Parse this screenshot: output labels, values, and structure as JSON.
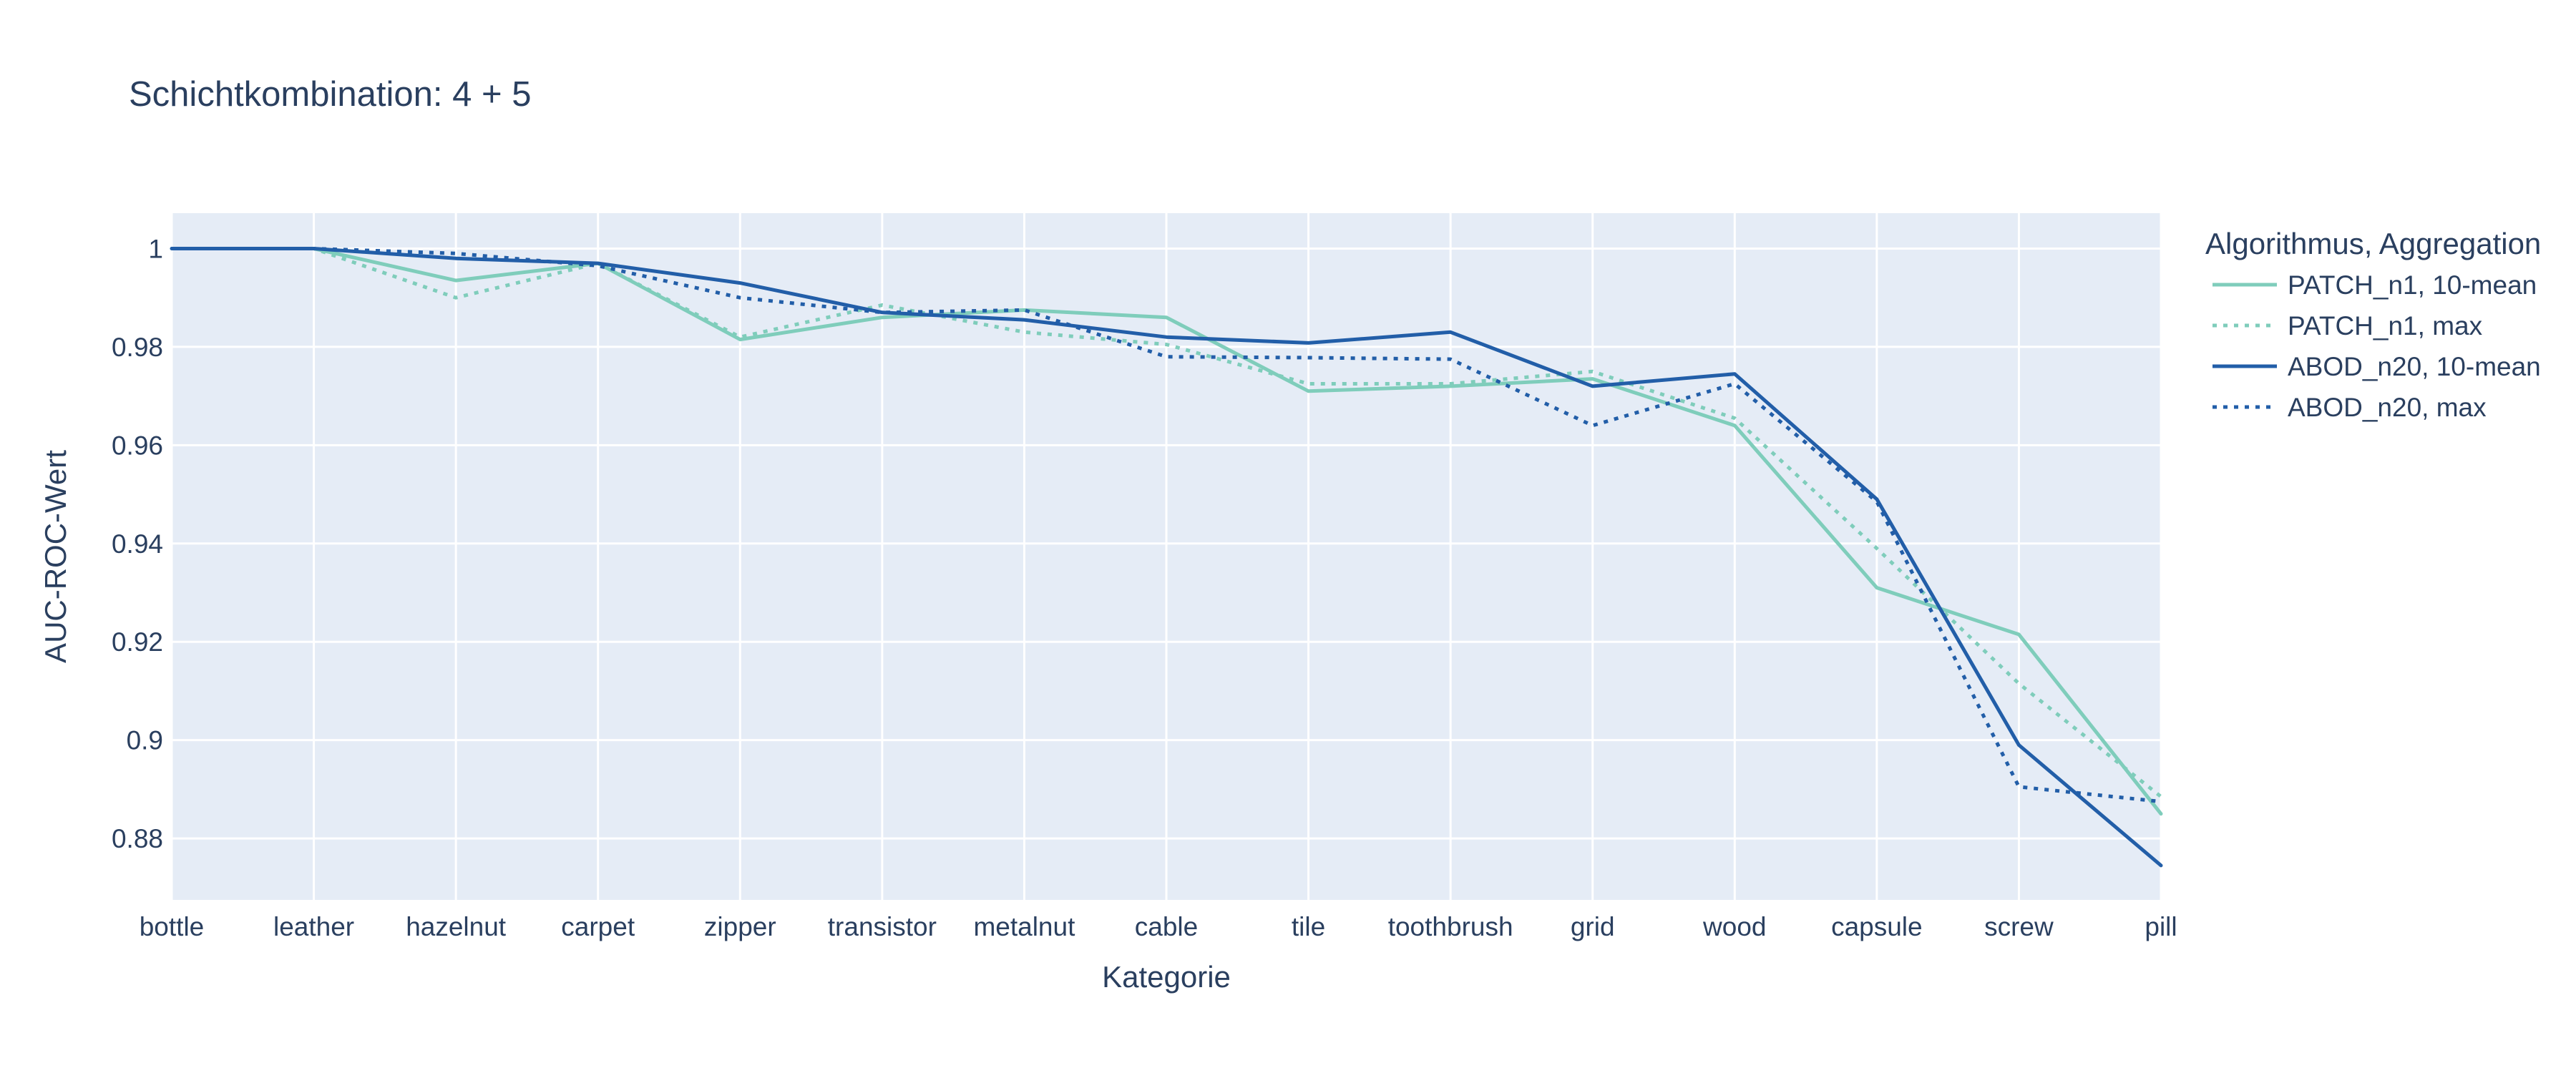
{
  "chart_data": {
    "type": "line",
    "title": "Schichtkombination: 4 + 5",
    "xlabel": "Kategorie",
    "ylabel": "AUC-ROC-Wert",
    "categories": [
      "bottle",
      "leather",
      "hazelnut",
      "carpet",
      "zipper",
      "transistor",
      "metalnut",
      "cable",
      "tile",
      "toothbrush",
      "grid",
      "wood",
      "capsule",
      "screw",
      "pill"
    ],
    "ylim": [
      0.8675,
      1.0072
    ],
    "yticks": [
      0.88,
      0.9,
      0.92,
      0.94,
      0.96,
      0.98,
      1
    ],
    "ytick_labels": [
      "0.88",
      "0.9",
      "0.92",
      "0.94",
      "0.96",
      "0.98",
      "1"
    ],
    "grid": true,
    "legend": {
      "title": "Algorithmus, Aggregation",
      "placement": "top-right"
    },
    "series": [
      {
        "name": "PATCH_n1, 10-mean",
        "color": "#7fcdbb",
        "dash": "solid",
        "values": [
          1.0,
          1.0,
          0.9935,
          0.997,
          0.9815,
          0.986,
          0.9875,
          0.986,
          0.971,
          0.972,
          0.9735,
          0.964,
          0.931,
          0.9215,
          0.885
        ]
      },
      {
        "name": "PATCH_n1, max",
        "color": "#7fcdbb",
        "dash": "dot",
        "values": [
          1.0,
          1.0,
          0.99,
          0.997,
          0.982,
          0.9885,
          0.983,
          0.9805,
          0.9725,
          0.9725,
          0.975,
          0.9655,
          0.939,
          0.9115,
          0.8885
        ]
      },
      {
        "name": "ABOD_n20, 10-mean",
        "color": "#225ea8",
        "dash": "solid",
        "values": [
          1.0,
          1.0,
          0.998,
          0.997,
          0.993,
          0.987,
          0.9855,
          0.982,
          0.9808,
          0.983,
          0.972,
          0.9745,
          0.949,
          0.899,
          0.8745
        ]
      },
      {
        "name": "ABOD_n20, max",
        "color": "#225ea8",
        "dash": "dot",
        "values": [
          1.0,
          1.0,
          0.999,
          0.9965,
          0.99,
          0.987,
          0.9875,
          0.978,
          0.9778,
          0.9775,
          0.964,
          0.9725,
          0.9485,
          0.8905,
          0.8875
        ]
      }
    ]
  }
}
